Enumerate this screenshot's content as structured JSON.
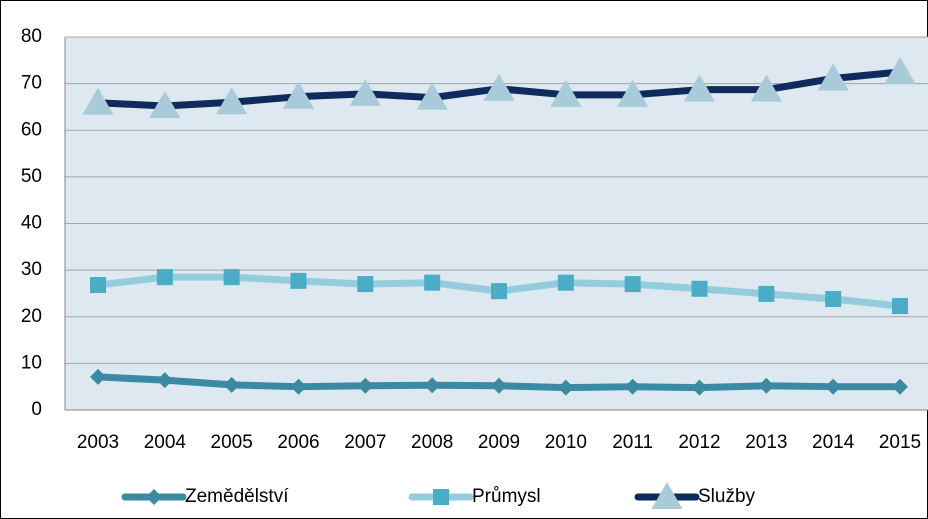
{
  "chart_data": {
    "type": "line",
    "categories": [
      "2003",
      "2004",
      "2005",
      "2006",
      "2007",
      "2008",
      "2009",
      "2010",
      "2011",
      "2012",
      "2013",
      "2014",
      "2015"
    ],
    "series": [
      {
        "name": "Zemědělství",
        "color": "#3a8aa3",
        "marker_color": "#3a8aa3",
        "marker": "diamond",
        "values": [
          7.1,
          6.4,
          5.4,
          5.0,
          5.2,
          5.3,
          5.2,
          4.8,
          5.0,
          4.8,
          5.2,
          5.0,
          5.0
        ]
      },
      {
        "name": "Průmysl",
        "color": "#93cddd",
        "marker_color": "#4bacc6",
        "marker": "square",
        "values": [
          26.8,
          28.5,
          28.5,
          27.7,
          27.0,
          27.3,
          25.5,
          27.3,
          27.0,
          26.0,
          24.9,
          23.8,
          22.3
        ]
      },
      {
        "name": "Služby",
        "color": "#0f2a5c",
        "marker_color": "#a9cad9",
        "marker": "triangle",
        "values": [
          65.9,
          65.2,
          66.0,
          67.2,
          67.8,
          67.0,
          68.9,
          67.6,
          67.6,
          68.7,
          68.7,
          71.1,
          72.5
        ]
      }
    ],
    "ylim": [
      0,
      80
    ],
    "yticks": [
      0,
      10,
      20,
      30,
      40,
      50,
      60,
      70,
      80
    ],
    "grid": true,
    "legend": "bottom"
  }
}
